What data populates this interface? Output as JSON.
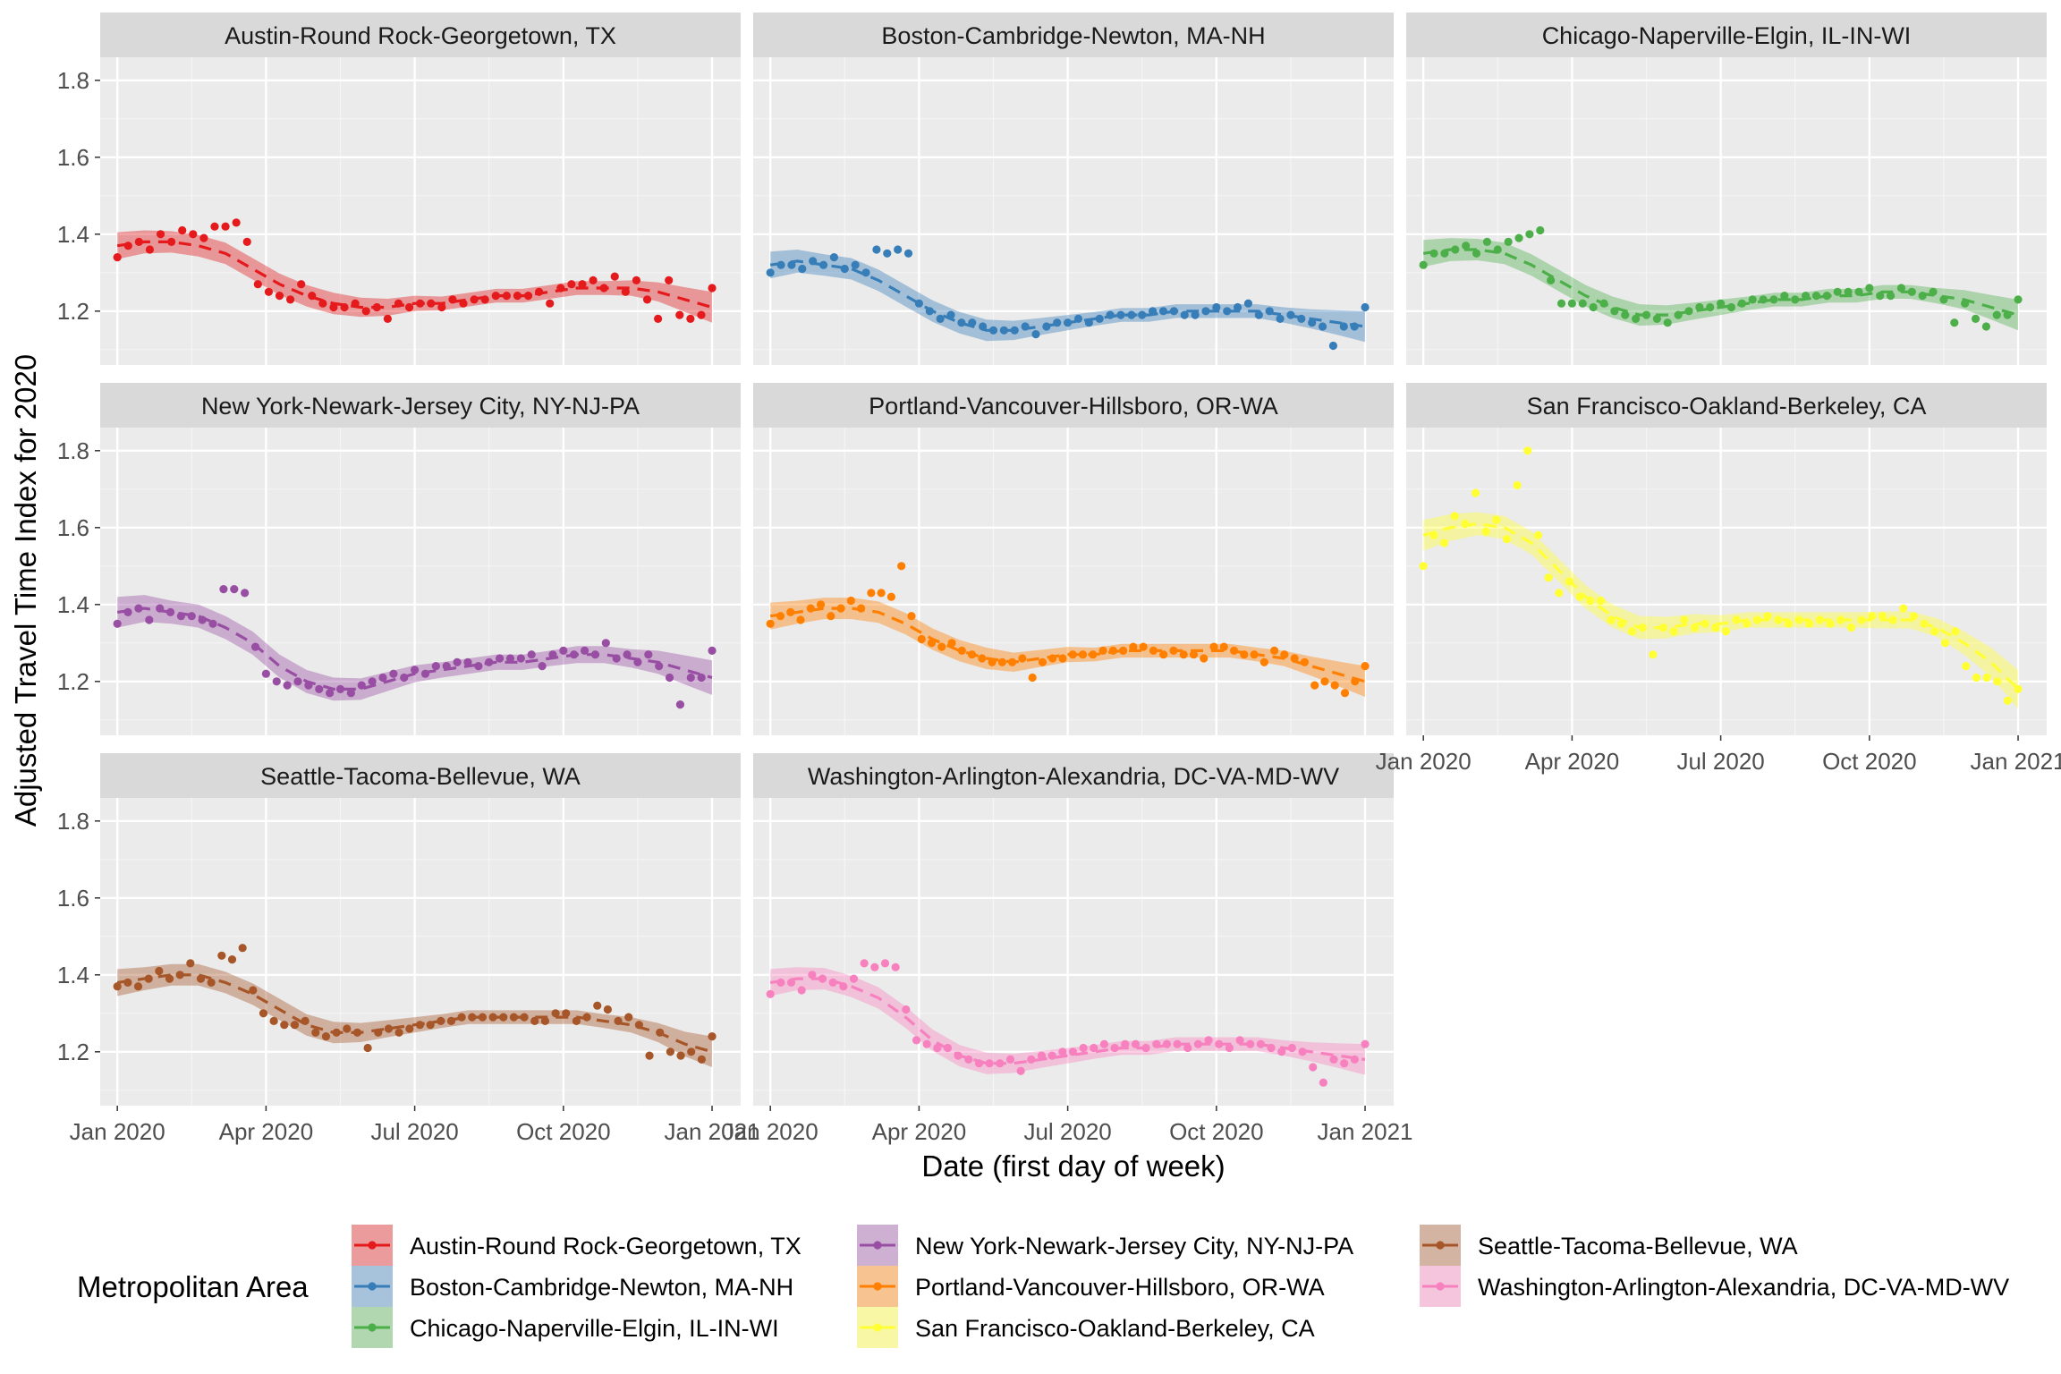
{
  "chart_data": {
    "type": "scatter",
    "layout": "facet-wrap 3 columns",
    "xlabel": "Date (first day of week)",
    "ylabel": "Adjusted Travel Time Index for 2020",
    "x_tick_labels": [
      "Jan 2020",
      "Apr 2020",
      "Jul 2020",
      "Oct 2020",
      "Jan 2021"
    ],
    "x_tick_months": [
      0,
      3,
      6,
      9,
      12
    ],
    "y_tick_labels": [
      "1.2",
      "1.4",
      "1.6",
      "1.8"
    ],
    "y_ticks": [
      1.2,
      1.4,
      1.6,
      1.8
    ],
    "ylim": [
      1.06,
      1.86
    ],
    "xlim_weeks": [
      -1.5,
      54.5
    ],
    "x_unit": "weeks since 2020-01-01",
    "smooth": "loess dashed line with confidence ribbon",
    "legend": {
      "title": "Metropolitan Area",
      "position": "bottom"
    },
    "series": [
      {
        "name": "Austin-Round Rock-Georgetown, TX",
        "color": "#E41A1C",
        "points": [
          1.34,
          1.37,
          1.38,
          1.36,
          1.4,
          1.38,
          1.41,
          1.4,
          1.39,
          1.42,
          1.42,
          1.43,
          1.38,
          1.27,
          1.25,
          1.24,
          1.23,
          1.27,
          1.24,
          1.22,
          1.21,
          1.21,
          1.22,
          1.2,
          1.21,
          1.18,
          1.22,
          1.21,
          1.22,
          1.22,
          1.21,
          1.23,
          1.22,
          1.23,
          1.23,
          1.24,
          1.24,
          1.24,
          1.24,
          1.25,
          1.22,
          1.26,
          1.27,
          1.27,
          1.28,
          1.26,
          1.29,
          1.25,
          1.28,
          1.23,
          1.18,
          1.28,
          1.19,
          1.18,
          1.19,
          1.26
        ],
        "smooth": [
          1.37,
          1.38,
          1.38,
          1.37,
          1.35,
          1.31,
          1.27,
          1.24,
          1.22,
          1.21,
          1.21,
          1.22,
          1.22,
          1.23,
          1.24,
          1.24,
          1.25,
          1.26,
          1.26,
          1.26,
          1.25,
          1.23,
          1.21
        ],
        "band": [
          0.035,
          0.03,
          0.028,
          0.028,
          0.028,
          0.028,
          0.028,
          0.028,
          0.028,
          0.025,
          0.022,
          0.02,
          0.018,
          0.018,
          0.018,
          0.018,
          0.018,
          0.018,
          0.018,
          0.02,
          0.025,
          0.032,
          0.04
        ]
      },
      {
        "name": "Boston-Cambridge-Newton, MA-NH",
        "color": "#377EB8",
        "points": [
          1.3,
          1.32,
          1.32,
          1.31,
          1.33,
          1.32,
          1.34,
          1.31,
          1.32,
          1.3,
          1.36,
          1.35,
          1.36,
          1.35,
          1.22,
          1.2,
          1.18,
          1.19,
          1.17,
          1.17,
          1.16,
          1.15,
          1.15,
          1.15,
          1.16,
          1.14,
          1.16,
          1.17,
          1.17,
          1.18,
          1.17,
          1.18,
          1.19,
          1.19,
          1.19,
          1.19,
          1.2,
          1.2,
          1.2,
          1.19,
          1.19,
          1.2,
          1.21,
          1.2,
          1.21,
          1.22,
          1.19,
          1.2,
          1.18,
          1.19,
          1.18,
          1.17,
          1.16,
          1.11,
          1.16,
          1.16,
          1.21
        ],
        "smooth": [
          1.32,
          1.33,
          1.32,
          1.31,
          1.28,
          1.24,
          1.2,
          1.17,
          1.15,
          1.15,
          1.16,
          1.17,
          1.18,
          1.19,
          1.19,
          1.2,
          1.2,
          1.2,
          1.2,
          1.19,
          1.18,
          1.17,
          1.16
        ],
        "band": [
          0.035,
          0.03,
          0.028,
          0.028,
          0.028,
          0.028,
          0.028,
          0.028,
          0.028,
          0.025,
          0.022,
          0.02,
          0.018,
          0.018,
          0.018,
          0.018,
          0.018,
          0.018,
          0.018,
          0.02,
          0.025,
          0.032,
          0.04
        ]
      },
      {
        "name": "Chicago-Naperville-Elgin, IL-IN-WI",
        "color": "#4DAF4A",
        "points": [
          1.32,
          1.35,
          1.35,
          1.36,
          1.37,
          1.35,
          1.38,
          1.36,
          1.38,
          1.39,
          1.4,
          1.41,
          1.28,
          1.22,
          1.22,
          1.22,
          1.21,
          1.22,
          1.2,
          1.19,
          1.18,
          1.19,
          1.18,
          1.17,
          1.19,
          1.2,
          1.21,
          1.21,
          1.22,
          1.21,
          1.22,
          1.23,
          1.23,
          1.23,
          1.24,
          1.23,
          1.24,
          1.24,
          1.24,
          1.25,
          1.25,
          1.25,
          1.26,
          1.24,
          1.24,
          1.26,
          1.25,
          1.24,
          1.25,
          1.23,
          1.17,
          1.22,
          1.18,
          1.16,
          1.19,
          1.19,
          1.23
        ],
        "smooth": [
          1.35,
          1.36,
          1.36,
          1.35,
          1.32,
          1.28,
          1.24,
          1.21,
          1.19,
          1.19,
          1.2,
          1.21,
          1.22,
          1.23,
          1.23,
          1.24,
          1.24,
          1.25,
          1.25,
          1.24,
          1.23,
          1.21,
          1.19
        ],
        "band": [
          0.035,
          0.03,
          0.028,
          0.028,
          0.028,
          0.028,
          0.028,
          0.028,
          0.028,
          0.025,
          0.022,
          0.02,
          0.018,
          0.018,
          0.018,
          0.018,
          0.018,
          0.018,
          0.018,
          0.02,
          0.025,
          0.032,
          0.04
        ]
      },
      {
        "name": "New York-Newark-Jersey City, NY-NJ-PA",
        "color": "#984EA3",
        "points": [
          1.35,
          1.38,
          1.39,
          1.36,
          1.39,
          1.38,
          1.37,
          1.37,
          1.36,
          1.35,
          1.44,
          1.44,
          1.43,
          1.29,
          1.22,
          1.2,
          1.19,
          1.2,
          1.19,
          1.18,
          1.17,
          1.18,
          1.17,
          1.19,
          1.2,
          1.21,
          1.22,
          1.21,
          1.23,
          1.22,
          1.24,
          1.24,
          1.25,
          1.25,
          1.24,
          1.25,
          1.26,
          1.26,
          1.26,
          1.27,
          1.24,
          1.27,
          1.28,
          1.27,
          1.28,
          1.27,
          1.3,
          1.26,
          1.27,
          1.25,
          1.27,
          1.24,
          1.21,
          1.14,
          1.21,
          1.21,
          1.28
        ],
        "smooth": [
          1.38,
          1.39,
          1.38,
          1.37,
          1.34,
          1.3,
          1.24,
          1.2,
          1.18,
          1.18,
          1.2,
          1.22,
          1.23,
          1.24,
          1.25,
          1.25,
          1.26,
          1.27,
          1.27,
          1.26,
          1.25,
          1.23,
          1.21
        ],
        "band": [
          0.04,
          0.035,
          0.03,
          0.03,
          0.03,
          0.03,
          0.03,
          0.03,
          0.03,
          0.028,
          0.025,
          0.022,
          0.02,
          0.02,
          0.02,
          0.02,
          0.02,
          0.022,
          0.022,
          0.024,
          0.03,
          0.038,
          0.045
        ]
      },
      {
        "name": "Portland-Vancouver-Hillsboro, OR-WA",
        "color": "#FF7F00",
        "points": [
          1.35,
          1.37,
          1.38,
          1.36,
          1.39,
          1.4,
          1.37,
          1.39,
          1.41,
          1.39,
          1.43,
          1.43,
          1.42,
          1.5,
          1.37,
          1.31,
          1.3,
          1.29,
          1.3,
          1.28,
          1.27,
          1.26,
          1.25,
          1.25,
          1.25,
          1.26,
          1.21,
          1.25,
          1.26,
          1.26,
          1.27,
          1.27,
          1.27,
          1.28,
          1.28,
          1.28,
          1.29,
          1.29,
          1.28,
          1.27,
          1.28,
          1.27,
          1.27,
          1.26,
          1.29,
          1.29,
          1.28,
          1.27,
          1.27,
          1.25,
          1.28,
          1.27,
          1.26,
          1.25,
          1.19,
          1.2,
          1.19,
          1.17,
          1.2,
          1.24
        ],
        "smooth": [
          1.37,
          1.38,
          1.39,
          1.39,
          1.38,
          1.35,
          1.31,
          1.28,
          1.26,
          1.25,
          1.26,
          1.27,
          1.27,
          1.28,
          1.28,
          1.28,
          1.28,
          1.28,
          1.27,
          1.26,
          1.24,
          1.22,
          1.2
        ],
        "band": [
          0.035,
          0.03,
          0.028,
          0.028,
          0.028,
          0.028,
          0.028,
          0.028,
          0.028,
          0.025,
          0.022,
          0.02,
          0.018,
          0.018,
          0.018,
          0.018,
          0.018,
          0.018,
          0.018,
          0.02,
          0.025,
          0.032,
          0.04
        ]
      },
      {
        "name": "San Francisco-Oakland-Berkeley, CA",
        "color": "#FFFF33",
        "points": [
          1.5,
          1.58,
          1.56,
          1.63,
          1.61,
          1.69,
          1.59,
          1.62,
          1.57,
          1.71,
          1.8,
          1.58,
          1.47,
          1.43,
          1.46,
          1.42,
          1.41,
          1.41,
          1.36,
          1.35,
          1.33,
          1.34,
          1.27,
          1.34,
          1.33,
          1.36,
          1.34,
          1.35,
          1.34,
          1.33,
          1.36,
          1.35,
          1.36,
          1.37,
          1.36,
          1.35,
          1.36,
          1.35,
          1.36,
          1.35,
          1.36,
          1.34,
          1.36,
          1.37,
          1.37,
          1.36,
          1.39,
          1.37,
          1.35,
          1.33,
          1.3,
          1.33,
          1.24,
          1.21,
          1.21,
          1.2,
          1.15,
          1.18
        ],
        "smooth": [
          1.58,
          1.6,
          1.61,
          1.6,
          1.56,
          1.49,
          1.42,
          1.37,
          1.34,
          1.34,
          1.35,
          1.35,
          1.36,
          1.36,
          1.36,
          1.36,
          1.36,
          1.36,
          1.36,
          1.34,
          1.3,
          1.25,
          1.18
        ],
        "band": [
          0.04,
          0.035,
          0.03,
          0.03,
          0.03,
          0.03,
          0.03,
          0.03,
          0.03,
          0.028,
          0.025,
          0.022,
          0.02,
          0.02,
          0.02,
          0.02,
          0.02,
          0.022,
          0.022,
          0.024,
          0.03,
          0.038,
          0.05
        ]
      },
      {
        "name": "Seattle-Tacoma-Bellevue, WA",
        "color": "#A65628",
        "points": [
          1.37,
          1.38,
          1.37,
          1.39,
          1.41,
          1.39,
          1.4,
          1.43,
          1.39,
          1.38,
          1.45,
          1.44,
          1.47,
          1.36,
          1.3,
          1.28,
          1.27,
          1.27,
          1.28,
          1.25,
          1.24,
          1.25,
          1.26,
          1.25,
          1.21,
          1.25,
          1.26,
          1.25,
          1.26,
          1.27,
          1.27,
          1.28,
          1.28,
          1.29,
          1.29,
          1.29,
          1.29,
          1.29,
          1.29,
          1.29,
          1.28,
          1.28,
          1.3,
          1.3,
          1.28,
          1.29,
          1.32,
          1.31,
          1.28,
          1.29,
          1.27,
          1.19,
          1.25,
          1.2,
          1.19,
          1.2,
          1.18,
          1.24
        ],
        "smooth": [
          1.38,
          1.39,
          1.4,
          1.4,
          1.38,
          1.35,
          1.31,
          1.27,
          1.25,
          1.25,
          1.26,
          1.27,
          1.28,
          1.29,
          1.29,
          1.29,
          1.29,
          1.29,
          1.28,
          1.27,
          1.25,
          1.22,
          1.2
        ],
        "band": [
          0.035,
          0.03,
          0.028,
          0.028,
          0.028,
          0.028,
          0.028,
          0.028,
          0.028,
          0.025,
          0.022,
          0.02,
          0.018,
          0.018,
          0.018,
          0.018,
          0.018,
          0.018,
          0.018,
          0.02,
          0.025,
          0.032,
          0.04
        ]
      },
      {
        "name": "Washington-Arlington-Alexandria, DC-VA-MD-WV",
        "color": "#F781BF",
        "points": [
          1.35,
          1.38,
          1.38,
          1.36,
          1.4,
          1.39,
          1.38,
          1.37,
          1.39,
          1.43,
          1.42,
          1.43,
          1.42,
          1.31,
          1.23,
          1.22,
          1.21,
          1.21,
          1.19,
          1.18,
          1.17,
          1.17,
          1.17,
          1.18,
          1.15,
          1.18,
          1.19,
          1.19,
          1.2,
          1.2,
          1.21,
          1.21,
          1.22,
          1.21,
          1.22,
          1.22,
          1.21,
          1.22,
          1.22,
          1.22,
          1.21,
          1.22,
          1.23,
          1.22,
          1.21,
          1.23,
          1.22,
          1.22,
          1.21,
          1.2,
          1.21,
          1.2,
          1.16,
          1.12,
          1.18,
          1.17,
          1.18,
          1.22
        ],
        "smooth": [
          1.38,
          1.39,
          1.39,
          1.37,
          1.34,
          1.29,
          1.23,
          1.19,
          1.17,
          1.17,
          1.18,
          1.19,
          1.2,
          1.21,
          1.21,
          1.22,
          1.22,
          1.22,
          1.22,
          1.21,
          1.2,
          1.19,
          1.18
        ],
        "band": [
          0.035,
          0.03,
          0.028,
          0.028,
          0.028,
          0.028,
          0.028,
          0.028,
          0.028,
          0.025,
          0.022,
          0.02,
          0.018,
          0.018,
          0.018,
          0.018,
          0.018,
          0.018,
          0.018,
          0.02,
          0.025,
          0.032,
          0.04
        ]
      }
    ]
  }
}
